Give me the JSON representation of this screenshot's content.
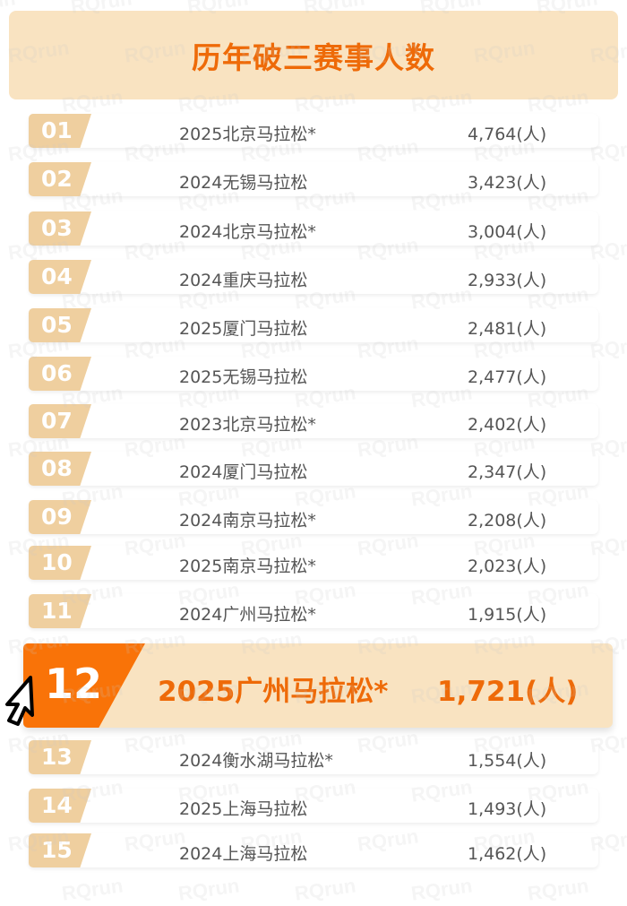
{
  "watermark": "RQrun",
  "title": "历年破三赛事人数",
  "colors": {
    "accent": "#f97308",
    "title": "#ee6a08",
    "badge": "#efcf9f",
    "highlight_bg": "#f9e3c1"
  },
  "rows": [
    {
      "rank": "01",
      "name": "2025北京马拉松*",
      "value": "4,764(人)"
    },
    {
      "rank": "02",
      "name": "2024无锡马拉松",
      "value": "3,423(人)"
    },
    {
      "rank": "03",
      "name": "2024北京马拉松*",
      "value": "3,004(人)"
    },
    {
      "rank": "04",
      "name": "2024重庆马拉松",
      "value": "2,933(人)"
    },
    {
      "rank": "05",
      "name": "2025厦门马拉松",
      "value": "2,481(人)"
    },
    {
      "rank": "06",
      "name": "2025无锡马拉松",
      "value": "2,477(人)"
    },
    {
      "rank": "07",
      "name": "2023北京马拉松*",
      "value": "2,402(人)"
    },
    {
      "rank": "08",
      "name": "2024厦门马拉松",
      "value": "2,347(人)"
    },
    {
      "rank": "09",
      "name": "2024南京马拉松*",
      "value": "2,208(人)"
    },
    {
      "rank": "10",
      "name": "2025南京马拉松*",
      "value": "2,023(人)"
    },
    {
      "rank": "11",
      "name": "2024广州马拉松*",
      "value": "1,915(人)"
    },
    {
      "rank": "13",
      "name": "2024衡水湖马拉松*",
      "value": "1,554(人)"
    },
    {
      "rank": "14",
      "name": "2025上海马拉松",
      "value": "1,493(人)"
    },
    {
      "rank": "15",
      "name": "2024上海马拉松",
      "value": "1,462(人)"
    }
  ],
  "highlight": {
    "rank": "12",
    "name": "2025广州马拉松*",
    "value": "1,721(人)"
  },
  "cursor_icon": "arrow-pointer"
}
